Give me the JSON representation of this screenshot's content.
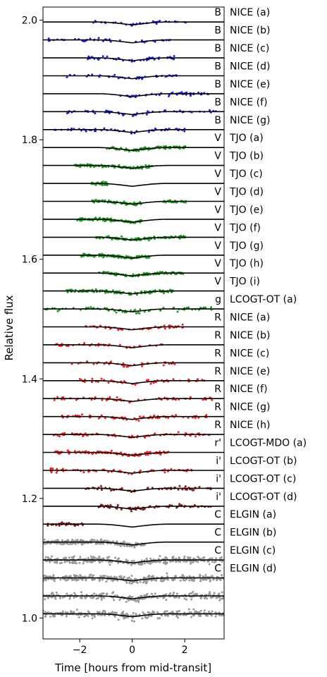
{
  "chart_data": {
    "type": "scatter",
    "title": "",
    "xlabel": "Time [hours from mid-transit]",
    "ylabel": "Relative flux",
    "xlim": [
      -3.4,
      3.5
    ],
    "ylim": [
      0.965,
      2.022
    ],
    "xticks": [
      -2,
      0,
      2
    ],
    "yticks": [
      1.0,
      1.2,
      1.4,
      1.6,
      1.8,
      2.0
    ],
    "grid": false,
    "legend": "none",
    "transit_model": {
      "depth": 0.0105,
      "ingress_start": -1.35,
      "ingress_end": -1.0,
      "egress_start": 1.0,
      "egress_end": 1.35
    },
    "series": [
      {
        "band": "B",
        "label": "NICE (a)",
        "offset": 1.997,
        "color": "#2222dd",
        "x_range": [
          -1.5,
          2.05
        ],
        "n_points": 35,
        "scatter": 0.0035
      },
      {
        "band": "B",
        "label": "NICE (b)",
        "offset": 1.967,
        "color": "#2222dd",
        "x_range": [
          -3.2,
          1.75
        ],
        "n_points": 40,
        "scatter": 0.0035
      },
      {
        "band": "B",
        "label": "NICE (c)",
        "offset": 1.937,
        "color": "#2222dd",
        "x_range": [
          -1.7,
          1.7
        ],
        "n_points": 45,
        "scatter": 0.0035
      },
      {
        "band": "B",
        "label": "NICE (d)",
        "offset": 1.907,
        "color": "#2222dd",
        "x_range": [
          -2.5,
          1.85
        ],
        "n_points": 40,
        "scatter": 0.0035
      },
      {
        "band": "B",
        "label": "NICE (e)",
        "offset": 1.877,
        "color": "#2222dd",
        "x_range": [
          -0.5,
          3.0
        ],
        "n_points": 50,
        "scatter": 0.0035
      },
      {
        "band": "B",
        "label": "NICE (f)",
        "offset": 1.847,
        "color": "#2222dd",
        "x_range": [
          -2.5,
          3.3
        ],
        "n_points": 55,
        "scatter": 0.004
      },
      {
        "band": "B",
        "label": "NICE (g)",
        "offset": 1.817,
        "color": "#2222dd",
        "x_range": [
          -3.1,
          2.0
        ],
        "n_points": 55,
        "scatter": 0.004
      },
      {
        "band": "V",
        "label": "TJO (a)",
        "offset": 1.787,
        "color": "#229922",
        "x_range": [
          -1.0,
          2.05
        ],
        "n_points": 110,
        "scatter": 0.003
      },
      {
        "band": "V",
        "label": "TJO (b)",
        "offset": 1.757,
        "color": "#229922",
        "x_range": [
          -2.3,
          0.8
        ],
        "n_points": 120,
        "scatter": 0.003
      },
      {
        "band": "V",
        "label": "TJO (c)",
        "offset": 1.727,
        "color": "#229922",
        "x_range": [
          -1.55,
          -0.95
        ],
        "n_points": 40,
        "scatter": 0.003
      },
      {
        "band": "V",
        "label": "TJO (d)",
        "offset": 1.697,
        "color": "#229922",
        "x_range": [
          -1.55,
          2.05
        ],
        "n_points": 110,
        "scatter": 0.003,
        "gap": [
          0.4,
          1.1
        ]
      },
      {
        "band": "V",
        "label": "TJO (e)",
        "offset": 1.667,
        "color": "#229922",
        "x_range": [
          -2.1,
          0.4
        ],
        "n_points": 110,
        "scatter": 0.003
      },
      {
        "band": "V",
        "label": "TJO (f)",
        "offset": 1.637,
        "color": "#229922",
        "x_range": [
          -1.4,
          2.05
        ],
        "n_points": 120,
        "scatter": 0.003
      },
      {
        "band": "V",
        "label": "TJO (g)",
        "offset": 1.607,
        "color": "#229922",
        "x_range": [
          -2.0,
          0.7
        ],
        "n_points": 110,
        "scatter": 0.003
      },
      {
        "band": "V",
        "label": "TJO (h)",
        "offset": 1.577,
        "color": "#229922",
        "x_range": [
          -1.3,
          1.95
        ],
        "n_points": 110,
        "scatter": 0.003
      },
      {
        "band": "V",
        "label": "TJO (i)",
        "offset": 1.547,
        "color": "#229922",
        "x_range": [
          -2.5,
          1.6
        ],
        "n_points": 130,
        "scatter": 0.003
      },
      {
        "band": "g",
        "label": "LCOGT-OT (a)",
        "offset": 1.517,
        "color": "#229922",
        "x_range": [
          -3.4,
          3.1
        ],
        "n_points": 70,
        "scatter": 0.005
      },
      {
        "band": "R",
        "label": "NICE (a)",
        "offset": 1.487,
        "color": "#ee2222",
        "x_range": [
          -1.9,
          2.0
        ],
        "n_points": 50,
        "scatter": 0.0035
      },
      {
        "band": "R",
        "label": "NICE (b)",
        "offset": 1.457,
        "color": "#ee2222",
        "x_range": [
          -3.1,
          1.3
        ],
        "n_points": 40,
        "scatter": 0.0035
      },
      {
        "band": "R",
        "label": "NICE (c)",
        "offset": 1.427,
        "color": "#ee2222",
        "x_range": [
          -2.3,
          2.0
        ],
        "n_points": 40,
        "scatter": 0.004
      },
      {
        "band": "R",
        "label": "NICE (e)",
        "offset": 1.397,
        "color": "#ee2222",
        "x_range": [
          -2.0,
          3.0
        ],
        "n_points": 55,
        "scatter": 0.004
      },
      {
        "band": "R",
        "label": "NICE (f)",
        "offset": 1.367,
        "color": "#ee2222",
        "x_range": [
          -3.0,
          3.1
        ],
        "n_points": 65,
        "scatter": 0.004
      },
      {
        "band": "R",
        "label": "NICE (g)",
        "offset": 1.337,
        "color": "#ee2222",
        "x_range": [
          -2.8,
          3.2
        ],
        "n_points": 80,
        "scatter": 0.004
      },
      {
        "band": "R",
        "label": "NICE (h)",
        "offset": 1.307,
        "color": "#ee2222",
        "x_range": [
          -3.0,
          3.0
        ],
        "n_points": 80,
        "scatter": 0.004
      },
      {
        "band": "r'",
        "label": "LCOGT-MDO (a)",
        "offset": 1.277,
        "color": "#ee2222",
        "x_range": [
          -3.0,
          1.4
        ],
        "n_points": 130,
        "scatter": 0.003
      },
      {
        "band": "i'",
        "label": "LCOGT-OT (b)",
        "offset": 1.247,
        "color": "#ee2222",
        "x_range": [
          -3.2,
          2.3
        ],
        "n_points": 70,
        "scatter": 0.004
      },
      {
        "band": "i'",
        "label": "LCOGT-OT (c)",
        "offset": 1.217,
        "color": "#8b1a1a",
        "x_range": [
          -1.8,
          3.0
        ],
        "n_points": 60,
        "scatter": 0.004
      },
      {
        "band": "i'",
        "label": "LCOGT-OT (d)",
        "offset": 1.187,
        "color": "#8b1a1a",
        "x_range": [
          -1.3,
          3.1
        ],
        "n_points": 70,
        "scatter": 0.004
      },
      {
        "band": "C",
        "label": "ELGIN (a)",
        "offset": 1.157,
        "color": "#8b1a1a",
        "x_range": [
          -3.3,
          -1.8
        ],
        "n_points": 35,
        "scatter": 0.004
      },
      {
        "band": "C",
        "label": "ELGIN (b)",
        "offset": 1.127,
        "color": "#999999",
        "x_range": [
          -3.4,
          0.5
        ],
        "n_points": 200,
        "scatter": 0.005
      },
      {
        "band": "C",
        "label": "ELGIN (c)",
        "offset": 1.097,
        "color": "#999999",
        "x_range": [
          -3.4,
          3.5
        ],
        "n_points": 320,
        "scatter": 0.0075
      },
      {
        "band": "C",
        "label": "ELGIN (d)",
        "offset": 1.067,
        "color": "#999999",
        "x_range": [
          -3.4,
          3.5
        ],
        "n_points": 320,
        "scatter": 0.007
      }
    ],
    "extra_baselines": [
      1.037,
      1.007
    ]
  }
}
